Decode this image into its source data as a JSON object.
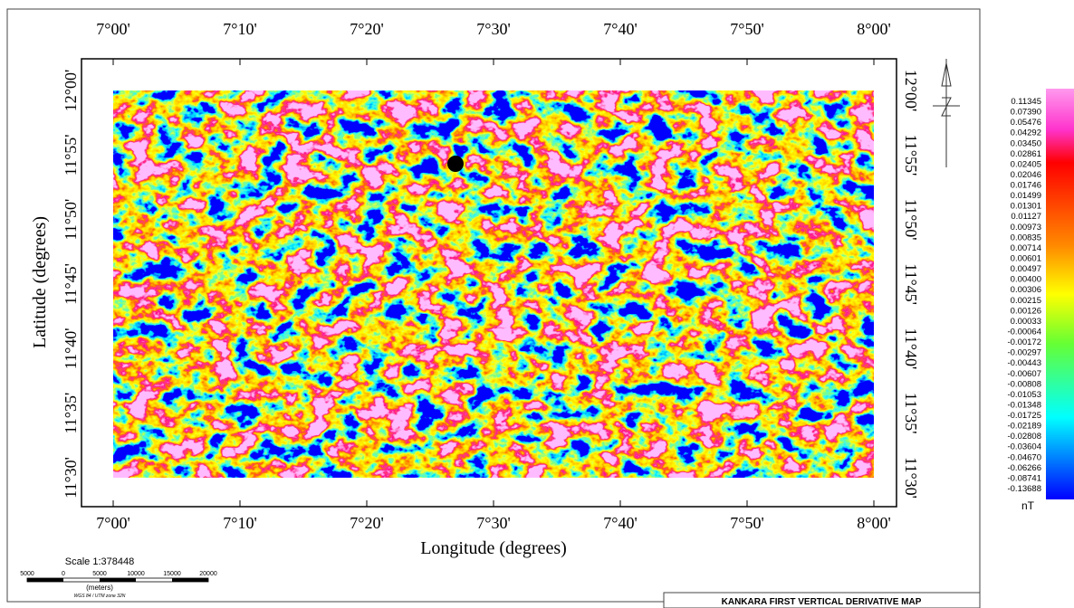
{
  "map": {
    "top_ticks": [
      "7°00'",
      "7°10'",
      "7°20'",
      "7°30'",
      "7°40'",
      "7°50'",
      "8°00'"
    ],
    "bottom_ticks": [
      "7°00'",
      "7°10'",
      "7°20'",
      "7°30'",
      "7°40'",
      "7°50'",
      "8°00'"
    ],
    "left_ticks": [
      "12°00'",
      "11°55'",
      "11°50'",
      "11°45'",
      "11°40'",
      "11°35'",
      "11°30'"
    ],
    "right_ticks": [
      "12°00'",
      "11°55'",
      "11°50'",
      "11°45'",
      "11°40'",
      "11°35'",
      "11°30'"
    ],
    "x_label": "Longitude (degrees)",
    "y_label": "Latitude (degrees)"
  },
  "legend": {
    "values": [
      "0.11345",
      "0.07390",
      "0.05476",
      "0.04292",
      "0.03450",
      "0.02861",
      "0.02405",
      "0.02046",
      "0.01746",
      "0.01499",
      "0.01301",
      "0.01127",
      "0.00973",
      "0.00835",
      "0.00714",
      "0.00601",
      "0.00497",
      "0.00400",
      "0.00306",
      "0.00215",
      "0.00126",
      "0.00033",
      "-0.00064",
      "-0.00172",
      "-0.00297",
      "-0.00443",
      "-0.00607",
      "-0.00808",
      "-0.01053",
      "-0.01348",
      "-0.01725",
      "-0.02189",
      "-0.02808",
      "-0.03604",
      "-0.04670",
      "-0.06266",
      "-0.08741",
      "-0.13688"
    ],
    "unit": "nT"
  },
  "scale": {
    "title": "Scale 1:378448",
    "labels": [
      "5000",
      "0",
      "5000",
      "10000",
      "15000",
      "20000"
    ],
    "unit": "(meters)",
    "projection": "WGS 84 / UTM zone 32N"
  },
  "title": "KANKARA FIRST VERTICAL DERIVATIVE MAP"
}
